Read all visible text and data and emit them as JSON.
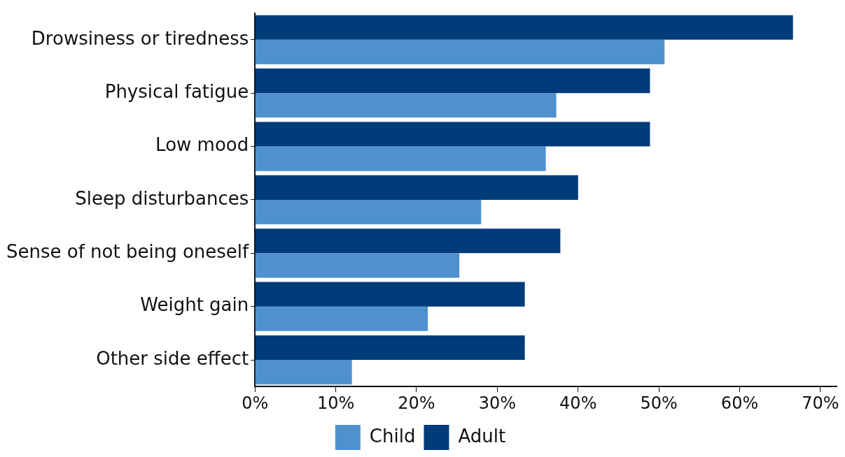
{
  "chart_data": {
    "type": "bar",
    "orientation": "horizontal",
    "categories": [
      "Drowsiness or tiredness",
      "Physical fatigue",
      "Low mood",
      "Sleep disturbances",
      "Sense of not being oneself",
      "Weight gain",
      "Other side effect"
    ],
    "series": [
      {
        "name": "Child",
        "color": "#4f91cf",
        "values": [
          50.7,
          37.3,
          36.0,
          28.0,
          25.3,
          21.4,
          12.0
        ]
      },
      {
        "name": "Adult",
        "color": "#023b7a",
        "values": [
          66.6,
          48.9,
          48.9,
          40.0,
          37.8,
          33.4,
          33.4
        ]
      }
    ],
    "xlim": [
      0,
      72
    ],
    "xticks": [
      {
        "value": 0,
        "label": "0%"
      },
      {
        "value": 10,
        "label": "10%"
      },
      {
        "value": 20,
        "label": "20%"
      },
      {
        "value": 30,
        "label": "30%"
      },
      {
        "value": 40,
        "label": "40%"
      },
      {
        "value": 50,
        "label": "50%"
      },
      {
        "value": 60,
        "label": "60%"
      },
      {
        "value": 70,
        "label": "70%"
      }
    ],
    "grid": false,
    "legend": "bottom"
  }
}
